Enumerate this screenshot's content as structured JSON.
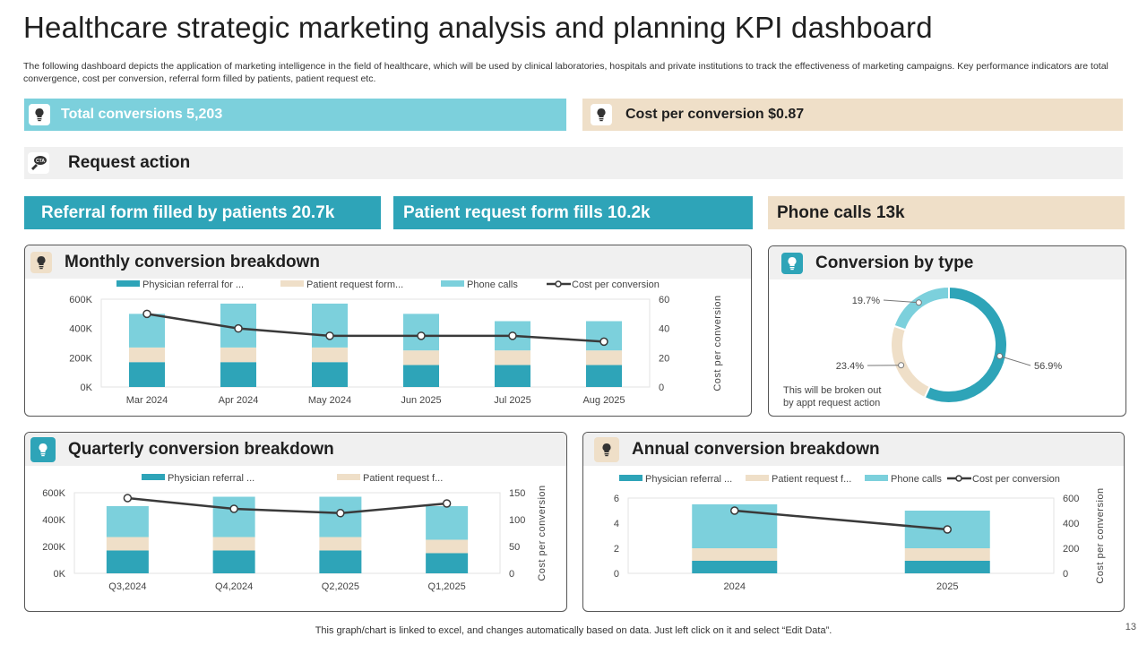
{
  "header": {
    "title": "Healthcare strategic marketing analysis and planning KPI dashboard",
    "description": "The following dashboard depicts the application of marketing intelligence in the field of healthcare, which will be used by clinical laboratories, hospitals and private institutions to track the effectiveness of marketing campaigns. Key performance indicators are total convergence, cost per conversion, referral form filled by patients, patient request etc."
  },
  "kpis": {
    "total_conversions": "Total conversions 5,203",
    "cost_per_conversion": "Cost  per conversion $0.87",
    "request_action": "Request action",
    "referral_form": "Referral form filled by patients 20.7k",
    "patient_request": "Patient request form fills 10.2k",
    "phone_calls": "Phone calls 13k"
  },
  "panels": {
    "monthly_title": "Monthly conversion breakdown",
    "type_title": "Conversion by type",
    "quarterly_title": "Quarterly conversion breakdown",
    "annual_title": "Annual conversion breakdown"
  },
  "footer": {
    "note": "This graph/chart is linked to excel,  and changes automatically based on data. Just left click on it and select “Edit Data”.",
    "page_number": "13"
  },
  "colors": {
    "teal": "#2ea4b8",
    "light_teal": "#7cd0dc",
    "beige": "#efdfc8",
    "line": "#3a3a3a"
  },
  "chart_data": [
    {
      "id": "monthly",
      "type": "bar",
      "stacked": true,
      "title": "Monthly conversion breakdown",
      "categories": [
        "Mar 2024",
        "Apr 2024",
        "May 2024",
        "Jun 2025",
        "Jul 2025",
        "Aug 2025"
      ],
      "series": [
        {
          "name": "Physician referral for ...",
          "values": [
            170000,
            170000,
            170000,
            150000,
            150000,
            150000
          ]
        },
        {
          "name": "Patient request form...",
          "values": [
            100000,
            100000,
            100000,
            100000,
            100000,
            100000
          ]
        },
        {
          "name": "Phone calls",
          "values": [
            230000,
            300000,
            300000,
            250000,
            200000,
            200000
          ]
        }
      ],
      "line": {
        "name": "Cost per conversion",
        "values": [
          50,
          40,
          35,
          35,
          35,
          31
        ]
      },
      "yticks": [
        "0K",
        "200K",
        "400K",
        "600K"
      ],
      "ylim": [
        0,
        600000
      ],
      "y2ticks": [
        "0",
        "20",
        "40",
        "60"
      ],
      "y2lim": [
        0,
        60
      ],
      "y2label": "Cost per conversion"
    },
    {
      "id": "quarterly",
      "type": "bar",
      "stacked": true,
      "title": "Quarterly conversion breakdown",
      "categories": [
        "Q3,2024",
        "Q4,2024",
        "Q2,2025",
        "Q1,2025"
      ],
      "series": [
        {
          "name": "Physician referral ...",
          "values": [
            170000,
            170000,
            170000,
            150000
          ]
        },
        {
          "name": "Patient request f...",
          "values": [
            100000,
            100000,
            100000,
            100000
          ]
        },
        {
          "name": "Phone calls",
          "values": [
            230000,
            300000,
            300000,
            250000
          ]
        }
      ],
      "line": {
        "name": "Cost per conversion",
        "values": [
          140,
          120,
          112,
          130
        ]
      },
      "yticks": [
        "0K",
        "200K",
        "400K",
        "600K"
      ],
      "ylim": [
        0,
        600000
      ],
      "y2ticks": [
        "0",
        "50",
        "100",
        "150"
      ],
      "y2lim": [
        0,
        150
      ],
      "y2label": "Cost per conversion"
    },
    {
      "id": "annual",
      "type": "bar",
      "stacked": true,
      "title": "Annual conversion breakdown",
      "categories": [
        "2024",
        "2025"
      ],
      "series": [
        {
          "name": "Physician referral ...",
          "values": [
            1,
            1
          ]
        },
        {
          "name": "Patient request f...",
          "values": [
            1,
            1
          ]
        },
        {
          "name": "Phone calls",
          "values": [
            3.5,
            3
          ]
        }
      ],
      "line": {
        "name": "Cost per conversion",
        "values": [
          500,
          350
        ]
      },
      "yticks": [
        "0",
        "2",
        "4",
        "6"
      ],
      "ylim": [
        0,
        6
      ],
      "y2ticks": [
        "0",
        "200",
        "400",
        "600"
      ],
      "y2lim": [
        0,
        600
      ],
      "y2label": "Cost per conversion"
    },
    {
      "id": "by_type",
      "type": "pie",
      "donut": true,
      "title": "Conversion by type",
      "slices": [
        {
          "label": "56.9%",
          "value": 56.9
        },
        {
          "label": "23.4%",
          "value": 23.4
        },
        {
          "label": "19.7%",
          "value": 19.7
        }
      ],
      "annotation": [
        "This will be broken out",
        "by appt request action"
      ]
    }
  ]
}
